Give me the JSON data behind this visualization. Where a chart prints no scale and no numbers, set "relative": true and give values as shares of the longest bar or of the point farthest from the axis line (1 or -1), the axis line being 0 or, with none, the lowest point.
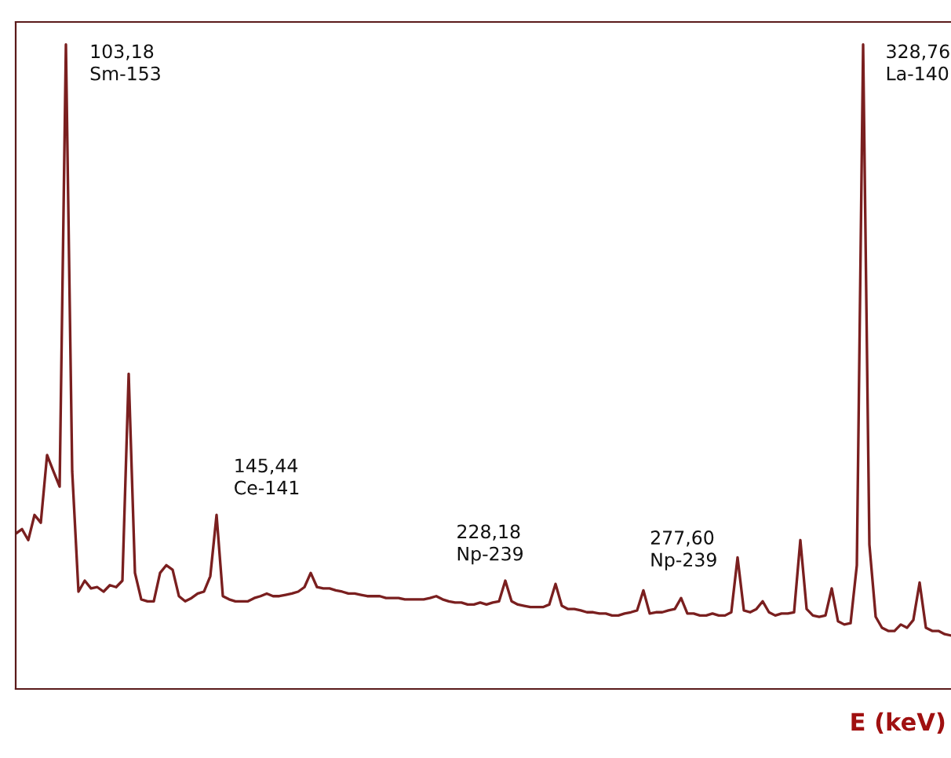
{
  "chart_data": {
    "type": "line",
    "relative": true,
    "xlabel": "E (keV)",
    "color": "#7a1f1f",
    "categories": [
      null,
      null,
      null,
      null,
      null,
      null,
      null,
      null,
      null,
      null,
      null,
      null,
      null,
      null,
      null,
      null,
      null,
      null,
      null,
      null,
      null,
      null,
      null,
      null,
      null,
      null,
      null,
      null,
      null,
      null,
      null,
      null,
      null,
      null,
      null,
      null,
      null,
      null,
      null,
      null,
      null,
      null,
      null,
      null,
      null,
      null,
      null,
      null,
      null,
      null,
      null,
      null,
      null,
      null,
      null,
      null,
      null,
      null,
      null,
      null,
      null,
      null,
      null,
      null,
      null,
      null,
      null,
      null,
      null,
      null,
      null,
      null,
      null,
      null,
      null,
      null,
      null,
      null,
      null,
      null,
      null,
      null,
      null,
      null,
      null,
      null,
      null,
      null,
      null,
      null,
      null,
      null,
      null,
      null,
      null,
      null,
      null,
      null,
      null,
      null,
      null,
      null,
      null,
      null,
      null,
      null,
      null,
      null,
      null,
      null,
      null,
      null,
      null,
      null,
      null,
      null,
      null,
      null,
      null,
      null,
      null,
      null,
      null,
      null,
      null,
      null,
      null,
      null,
      null,
      null,
      null,
      null,
      null,
      null,
      null,
      null,
      null,
      null,
      null,
      null,
      null,
      null,
      null,
      null,
      null,
      null,
      null,
      null,
      null,
      null
    ],
    "values": [
      0.241,
      0.248,
      0.231,
      0.27,
      0.258,
      0.363,
      0.338,
      0.314,
      1.0,
      0.338,
      0.151,
      0.168,
      0.156,
      0.158,
      0.151,
      0.161,
      0.158,
      0.168,
      0.489,
      0.18,
      0.139,
      0.136,
      0.136,
      0.18,
      0.192,
      0.185,
      0.144,
      0.136,
      0.141,
      0.148,
      0.151,
      0.175,
      0.27,
      0.144,
      0.139,
      0.136,
      0.136,
      0.136,
      0.141,
      0.144,
      0.148,
      0.144,
      0.144,
      0.146,
      0.148,
      0.151,
      0.158,
      0.18,
      0.158,
      0.156,
      0.156,
      0.153,
      0.151,
      0.148,
      0.148,
      0.146,
      0.144,
      0.144,
      0.144,
      0.141,
      0.141,
      0.141,
      0.139,
      0.139,
      0.139,
      0.139,
      0.141,
      0.144,
      0.139,
      0.136,
      0.134,
      0.134,
      0.131,
      0.131,
      0.134,
      0.131,
      0.134,
      0.136,
      0.168,
      0.136,
      0.131,
      0.129,
      0.127,
      0.127,
      0.127,
      0.131,
      0.163,
      0.129,
      0.124,
      0.124,
      0.122,
      0.119,
      0.119,
      0.117,
      0.117,
      0.114,
      0.114,
      0.117,
      0.119,
      0.122,
      0.153,
      0.117,
      0.119,
      0.119,
      0.122,
      0.124,
      0.141,
      0.117,
      0.117,
      0.114,
      0.114,
      0.117,
      0.114,
      0.114,
      0.119,
      0.204,
      0.122,
      0.119,
      0.124,
      0.136,
      0.119,
      0.114,
      0.117,
      0.117,
      0.119,
      0.231,
      0.124,
      0.114,
      0.112,
      0.114,
      0.156,
      0.105,
      0.1,
      0.102,
      0.192,
      1.0,
      0.224,
      0.112,
      0.095,
      0.09,
      0.09,
      0.1,
      0.095,
      0.107,
      0.165,
      0.095,
      0.09,
      0.09,
      0.085,
      0.083
    ],
    "annotations": [
      "103,18\nSm-153",
      "145,44\nCe-141",
      "228,18\nNp-239",
      "277,60\nNp-239",
      "328,76\nLa-140"
    ]
  }
}
